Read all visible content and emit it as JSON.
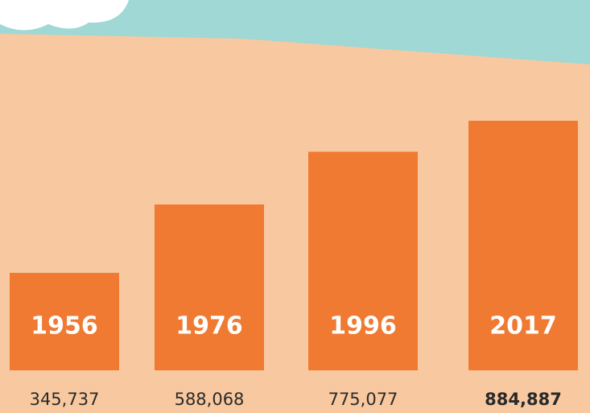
{
  "chart_data": {
    "type": "bar",
    "categories": [
      "1956",
      "1976",
      "1996",
      "2017"
    ],
    "values": [
      345737,
      588068,
      775077,
      884887
    ],
    "value_labels": [
      "345,737",
      "588,068",
      "775,077",
      "884,887"
    ],
    "color": "#f07a32"
  }
}
